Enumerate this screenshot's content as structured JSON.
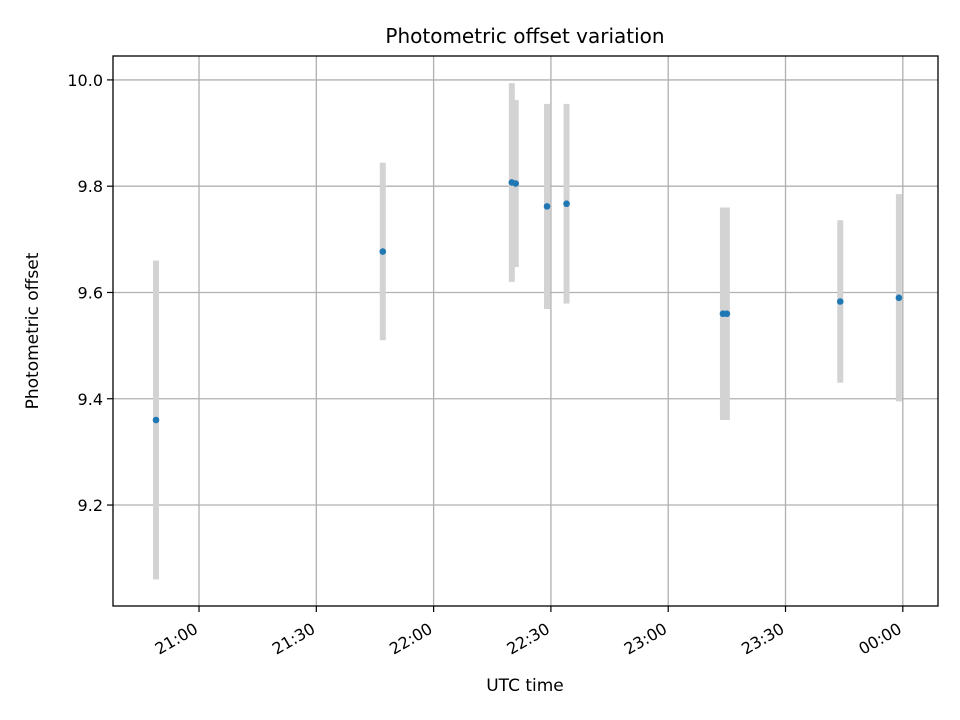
{
  "chart_data": {
    "type": "scatter",
    "title": "Photometric offset variation",
    "xlabel": "UTC time",
    "ylabel": "Photometric offset",
    "x_ticks": [
      "21:00",
      "21:30",
      "22:00",
      "22:30",
      "23:00",
      "23:30",
      "00:00"
    ],
    "y_ticks": [
      "9.2",
      "9.4",
      "9.6",
      "9.8",
      "10.0"
    ],
    "xlim": [
      "20:38",
      "00:09"
    ],
    "ylim": [
      9.01,
      10.045
    ],
    "grid": true,
    "colors": {
      "point": "#1f77b4",
      "errorbar": "#d3d3d3",
      "grid": "#b0b0b0"
    },
    "points": [
      {
        "x": "20:49",
        "y": 9.36,
        "yerr": 0.3
      },
      {
        "x": "21:47",
        "y": 9.677,
        "yerr": 0.167
      },
      {
        "x": "22:20",
        "y": 9.807,
        "yerr": 0.187
      },
      {
        "x": "22:21",
        "y": 9.805,
        "yerr": 0.157
      },
      {
        "x": "22:29",
        "y": 9.762,
        "yerr": 0.193
      },
      {
        "x": "22:34",
        "y": 9.767,
        "yerr": 0.188
      },
      {
        "x": "23:14",
        "y": 9.56,
        "yerr": 0.2
      },
      {
        "x": "23:15",
        "y": 9.56,
        "yerr": 0.2
      },
      {
        "x": "23:44",
        "y": 9.583,
        "yerr": 0.153
      },
      {
        "x": "23:59",
        "y": 9.59,
        "yerr": 0.195
      }
    ]
  }
}
